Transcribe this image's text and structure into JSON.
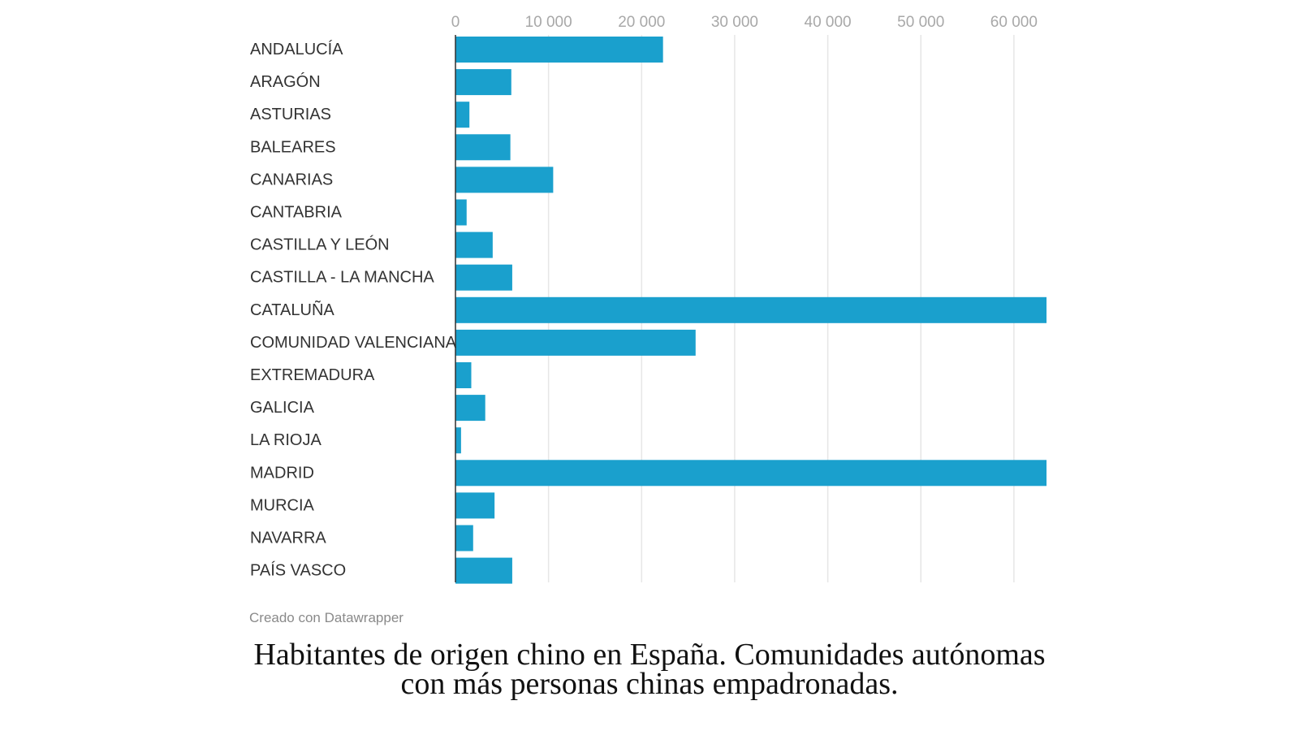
{
  "chart_data": {
    "type": "bar",
    "orientation": "horizontal",
    "categories": [
      "ANDALUCÍA",
      "ARAGÓN",
      "ASTURIAS",
      "BALEARES",
      "CANARIAS",
      "CANTABRIA",
      "CASTILLA Y LEÓN",
      "CASTILLA - LA MANCHA",
      "CATALUÑA",
      "COMUNIDAD VALENCIANA",
      "EXTREMADURA",
      "GALICIA",
      "LA RIOJA",
      "MADRID",
      "MURCIA",
      "NAVARRA",
      "PAÍS VASCO"
    ],
    "values": [
      22300,
      6000,
      1500,
      5900,
      10500,
      1200,
      4000,
      6100,
      63500,
      25800,
      1700,
      3200,
      600,
      63500,
      4200,
      1900,
      6100
    ],
    "xticks": [
      0,
      10000,
      20000,
      30000,
      40000,
      50000,
      60000
    ],
    "xtick_labels": [
      "0",
      "10 000",
      "20 000",
      "30 000",
      "40 000",
      "50 000",
      "60 000"
    ],
    "xlim": [
      0,
      63500
    ],
    "title": "",
    "xlabel": "",
    "ylabel": "",
    "grid": true,
    "bar_color": "#1aa0cd"
  },
  "credit": "Creado con Datawrapper",
  "caption": {
    "line1": "Habitantes de origen chino en España. Comunidades autónomas",
    "line2": "con más personas chinas empadronadas."
  }
}
